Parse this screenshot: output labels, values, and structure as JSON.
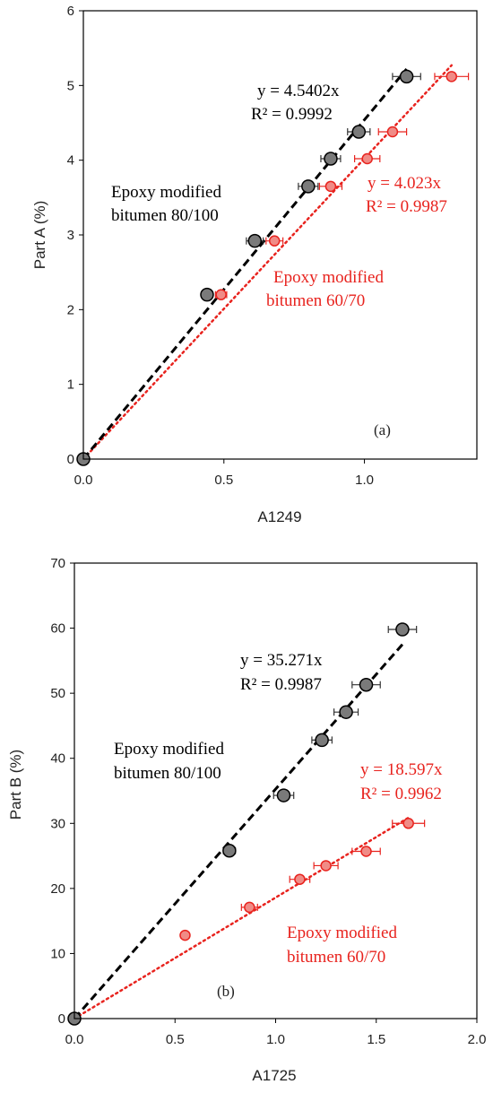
{
  "colors": {
    "black_series": "#000000",
    "red_series": "#e8231e",
    "marker_black_fill": "#7a7a7a",
    "marker_red_fill": "#f08b86"
  },
  "chart_data": [
    {
      "type": "scatter",
      "panel_label": "(a)",
      "xlabel": "A1249",
      "ylabel": "Part A (%)",
      "xlim": [
        0,
        1.4
      ],
      "ylim": [
        0,
        6
      ],
      "xticks": [
        "0.0",
        "0.5",
        "1.0"
      ],
      "xtick_values": [
        0,
        0.5,
        1.0
      ],
      "yticks": [
        "0",
        "1",
        "2",
        "3",
        "4",
        "5",
        "6"
      ],
      "ytick_values": [
        0,
        1,
        2,
        3,
        4,
        5,
        6
      ],
      "grid": false,
      "series": [
        {
          "name": "Epoxy modified bitumen 80/100",
          "color": "black",
          "x": [
            0,
            0.44,
            0.61,
            0.8,
            0.88,
            0.98,
            1.15
          ],
          "y": [
            0,
            2.2,
            2.92,
            3.65,
            4.02,
            4.38,
            5.12
          ],
          "xerr": [
            0,
            0,
            0.03,
            0.035,
            0.035,
            0.04,
            0.05
          ],
          "slope": 4.5402,
          "equation": "y = 4.5402x",
          "r2": "R² = 0.9992",
          "line_style": "dashed"
        },
        {
          "name": "Epoxy modified bitumen 60/70",
          "color": "red",
          "x": [
            0,
            0.49,
            0.68,
            0.88,
            1.01,
            1.1,
            1.31
          ],
          "y": [
            0,
            2.2,
            2.92,
            3.65,
            4.02,
            4.38,
            5.12
          ],
          "xerr": [
            0,
            0.02,
            0.03,
            0.04,
            0.045,
            0.05,
            0.06
          ],
          "slope": 4.023,
          "equation": "y = 4.023x",
          "r2": "R² = 0.9987",
          "line_style": "dotted"
        }
      ],
      "annotations": {
        "black_label_line1": "Epoxy modified",
        "black_label_line2": "bitumen 80/100",
        "red_label_line1": "Epoxy modified",
        "red_label_line2": "bitumen 60/70"
      }
    },
    {
      "type": "scatter",
      "panel_label": "(b)",
      "xlabel": "A1725",
      "ylabel": "Part B (%)",
      "xlim": [
        0,
        2.0
      ],
      "ylim": [
        0,
        70
      ],
      "xticks": [
        "0.0",
        "0.5",
        "1.0",
        "1.5",
        "2.0"
      ],
      "xtick_values": [
        0,
        0.5,
        1.0,
        1.5,
        2.0
      ],
      "yticks": [
        "0",
        "10",
        "20",
        "30",
        "40",
        "50",
        "60",
        "70"
      ],
      "ytick_values": [
        0,
        10,
        20,
        30,
        40,
        50,
        60,
        70
      ],
      "grid": false,
      "series": [
        {
          "name": "Epoxy modified bitumen 80/100",
          "color": "black",
          "x": [
            0,
            0.77,
            1.04,
            1.23,
            1.35,
            1.45,
            1.63
          ],
          "y": [
            0,
            25.8,
            34.3,
            42.8,
            47.1,
            51.3,
            59.8
          ],
          "xerr": [
            0,
            0.03,
            0.05,
            0.05,
            0.06,
            0.07,
            0.07
          ],
          "slope": 35.271,
          "equation": "y = 35.271x",
          "r2": "R² = 0.9987",
          "line_style": "dashed"
        },
        {
          "name": "Epoxy modified bitumen 60/70",
          "color": "red",
          "x": [
            0,
            0.55,
            0.87,
            1.12,
            1.25,
            1.45,
            1.66
          ],
          "y": [
            0,
            12.8,
            17.1,
            21.4,
            23.5,
            25.7,
            30.0
          ],
          "xerr": [
            0,
            0.02,
            0.04,
            0.05,
            0.06,
            0.07,
            0.08
          ],
          "slope": 18.597,
          "equation": "y = 18.597x",
          "r2": "R² = 0.9962",
          "line_style": "dotted"
        }
      ],
      "annotations": {
        "black_label_line1": "Epoxy modified",
        "black_label_line2": "bitumen 80/100",
        "red_label_line1": "Epoxy modified",
        "red_label_line2": "bitumen 60/70"
      }
    }
  ]
}
